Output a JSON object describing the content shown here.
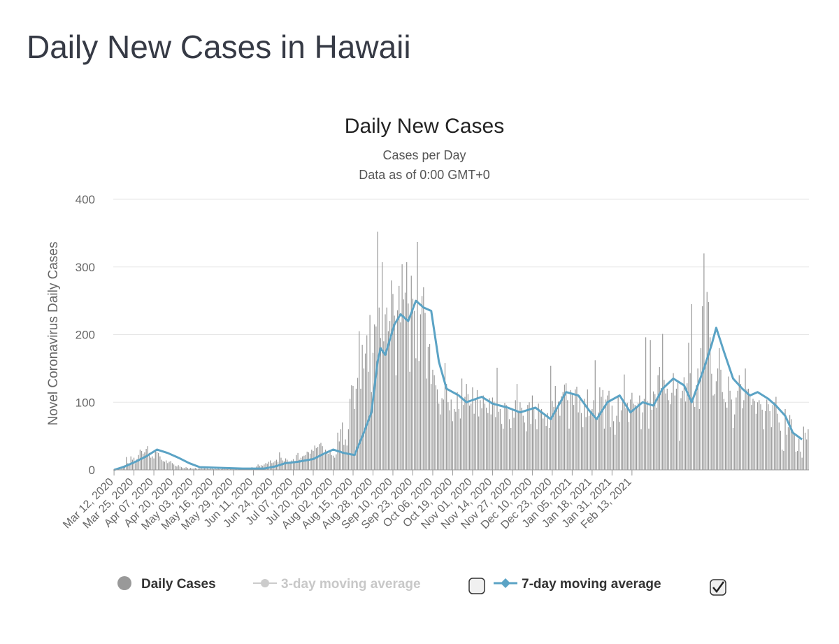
{
  "page": {
    "heading": "Daily New Cases in Hawaii"
  },
  "chart_data": {
    "type": "bar",
    "title": "Daily New Cases",
    "subtitle_lines": [
      "Cases per Day",
      "Data as of 0:00 GMT+0"
    ],
    "ylabel": "Novel Coronavirus Daily Cases",
    "xlabel": "",
    "ylim": [
      0,
      400
    ],
    "yticks": [
      0,
      100,
      200,
      300,
      400
    ],
    "grid": true,
    "start_date": "2020-03-12",
    "x_tick_labels": [
      "Mar 12, 2020",
      "Mar 25, 2020",
      "Apr 07, 2020",
      "Apr 20, 2020",
      "May 03, 2020",
      "May 16, 2020",
      "May 29, 2020",
      "Jun 11, 2020",
      "Jun 24, 2020",
      "Jul 07, 2020",
      "Jul 20, 2020",
      "Aug 02, 2020",
      "Aug 15, 2020",
      "Aug 28, 2020",
      "Sep 10, 2020",
      "Sep 23, 2020",
      "Oct 06, 2020",
      "Oct 19, 2020",
      "Nov 01, 2020",
      "Nov 14, 2020",
      "Nov 27, 2020",
      "Dec 10, 2020",
      "Dec 23, 2020",
      "Jan 05, 2021",
      "Jan 18, 2021",
      "Jan 31, 2021",
      "Feb 13, 2021"
    ],
    "series": [
      {
        "name": "Daily Cases",
        "kind": "bar",
        "color": "#999999",
        "values": [
          0,
          2,
          1,
          3,
          2,
          4,
          6,
          7,
          19,
          10,
          8,
          20,
          15,
          18,
          10,
          16,
          22,
          30,
          28,
          24,
          26,
          31,
          35,
          25,
          18,
          20,
          17,
          30,
          27,
          25,
          20,
          15,
          13,
          12,
          14,
          10,
          12,
          13,
          10,
          8,
          6,
          5,
          7,
          5,
          4,
          3,
          3,
          4,
          3,
          2,
          3,
          2,
          2,
          3,
          2,
          2,
          2,
          3,
          2,
          2,
          3,
          2,
          1,
          2,
          2,
          1,
          2,
          1,
          2,
          1,
          1,
          2,
          2,
          1,
          1,
          2,
          1,
          2,
          1,
          2,
          1,
          2,
          2,
          1,
          2,
          2,
          3,
          2,
          2,
          1,
          4,
          3,
          3,
          5,
          8,
          6,
          7,
          6,
          8,
          10,
          9,
          12,
          14,
          10,
          11,
          13,
          15,
          12,
          26,
          18,
          14,
          13,
          17,
          15,
          10,
          12,
          14,
          16,
          13,
          22,
          25,
          15,
          18,
          20,
          21,
          22,
          27,
          26,
          24,
          30,
          28,
          36,
          32,
          34,
          38,
          40,
          35,
          22,
          30,
          25,
          24,
          27,
          22,
          21,
          18,
          23,
          55,
          42,
          60,
          70,
          37,
          45,
          36,
          60,
          105,
          125,
          124,
          90,
          120,
          136,
          205,
          120,
          185,
          150,
          172,
          199,
          145,
          229,
          115,
          173,
          215,
          212,
          352,
          240,
          195,
          307,
          190,
          230,
          240,
          205,
          220,
          280,
          260,
          228,
          140,
          236,
          272,
          218,
          304,
          252,
          262,
          307,
          246,
          145,
          287,
          253,
          235,
          165,
          337,
          161,
          230,
          257,
          270,
          232,
          135,
          182,
          186,
          127,
          148,
          140,
          125,
          119,
          98,
          82,
          106,
          104,
          158,
          127,
          100,
          88,
          104,
          72,
          90,
          86,
          115,
          90,
          76,
          135,
          96,
          108,
          127,
          112,
          95,
          98,
          122,
          83,
          105,
          118,
          79,
          103,
          91,
          110,
          98,
          92,
          84,
          106,
          82,
          107,
          101,
          78,
          151,
          86,
          90,
          68,
          61,
          99,
          96,
          90,
          75,
          62,
          90,
          77,
          103,
          127,
          86,
          100,
          92,
          80,
          70,
          57,
          96,
          100,
          68,
          110,
          93,
          75,
          60,
          98,
          86,
          90,
          76,
          80,
          65,
          84,
          62,
          154,
          102,
          93,
          124,
          88,
          101,
          80,
          109,
          115,
          126,
          128,
          103,
          61,
          118,
          112,
          96,
          119,
          123,
          85,
          110,
          84,
          63,
          105,
          78,
          119,
          80,
          85,
          90,
          103,
          162,
          74,
          85,
          122,
          108,
          118,
          61,
          104,
          110,
          117,
          63,
          95,
          72,
          52,
          80,
          108,
          71,
          88,
          101,
          141,
          91,
          99,
          71,
          104,
          114,
          98,
          96,
          94,
          99,
          110,
          60,
          85,
          105,
          196,
          102,
          61,
          192,
          89,
          116,
          112,
          92,
          140,
          152,
          121,
          201,
          133,
          113,
          120,
          103,
          97,
          114,
          143,
          110,
          120,
          131,
          43,
          106,
          117,
          137,
          101,
          128,
          188,
          143,
          245,
          102,
          93,
          125,
          150,
          90,
          180,
          242,
          320,
          154,
          263,
          248,
          196,
          142,
          110,
          112,
          131,
          150,
          180,
          148,
          115,
          105,
          100,
          92,
          138,
          117,
          104,
          62,
          82,
          107,
          117,
          140,
          127,
          91,
          103,
          150,
          119,
          120,
          111,
          96,
          105,
          102,
          83,
          100,
          103,
          97,
          89,
          60,
          87,
          104,
          97,
          87,
          63,
          96,
          100,
          108,
          83,
          70,
          58,
          30,
          28,
          90,
          52,
          63,
          81,
          75,
          54,
          53,
          27,
          28,
          46,
          27,
          18,
          64,
          55,
          45,
          60
        ]
      },
      {
        "name": "3-day moving average",
        "kind": "line",
        "color": "#cccccc",
        "visible": false,
        "values": []
      },
      {
        "name": "7-day moving average",
        "kind": "line",
        "color": "#5ba3c5",
        "visible": true,
        "anchors": [
          [
            0,
            0
          ],
          [
            7,
            5
          ],
          [
            14,
            12
          ],
          [
            21,
            20
          ],
          [
            28,
            30
          ],
          [
            35,
            25
          ],
          [
            42,
            18
          ],
          [
            49,
            10
          ],
          [
            56,
            4
          ],
          [
            70,
            3
          ],
          [
            84,
            2
          ],
          [
            98,
            2
          ],
          [
            105,
            5
          ],
          [
            112,
            10
          ],
          [
            120,
            12
          ],
          [
            130,
            16
          ],
          [
            137,
            24
          ],
          [
            143,
            30
          ],
          [
            150,
            25
          ],
          [
            157,
            22
          ],
          [
            163,
            55
          ],
          [
            168,
            85
          ],
          [
            172,
            160
          ],
          [
            174,
            180
          ],
          [
            177,
            170
          ],
          [
            183,
            215
          ],
          [
            187,
            230
          ],
          [
            192,
            220
          ],
          [
            197,
            250
          ],
          [
            202,
            240
          ],
          [
            207,
            235
          ],
          [
            212,
            160
          ],
          [
            217,
            120
          ],
          [
            225,
            110
          ],
          [
            230,
            100
          ],
          [
            240,
            108
          ],
          [
            247,
            98
          ],
          [
            257,
            92
          ],
          [
            265,
            85
          ],
          [
            275,
            92
          ],
          [
            285,
            75
          ],
          [
            295,
            115
          ],
          [
            303,
            110
          ],
          [
            310,
            88
          ],
          [
            315,
            75
          ],
          [
            322,
            100
          ],
          [
            330,
            110
          ],
          [
            337,
            85
          ],
          [
            345,
            100
          ],
          [
            352,
            95
          ],
          [
            358,
            120
          ],
          [
            365,
            135
          ],
          [
            372,
            125
          ],
          [
            377,
            100
          ],
          [
            381,
            125
          ],
          [
            385,
            150
          ],
          [
            390,
            185
          ],
          [
            393,
            210
          ],
          [
            398,
            175
          ],
          [
            404,
            135
          ],
          [
            410,
            120
          ],
          [
            415,
            110
          ],
          [
            420,
            115
          ],
          [
            427,
            105
          ],
          [
            432,
            95
          ],
          [
            438,
            80
          ],
          [
            443,
            55
          ],
          [
            449,
            45
          ]
        ]
      }
    ],
    "legend": {
      "placement": "bottom",
      "items": [
        {
          "label": "Daily Cases",
          "color": "#999999",
          "active": true,
          "checkbox": null
        },
        {
          "label": "3-day moving average",
          "color": "#cccccc",
          "active": false,
          "checkbox": false
        },
        {
          "label": "7-day moving average",
          "color": "#5ba3c5",
          "active": true,
          "checkbox": true
        }
      ]
    }
  }
}
